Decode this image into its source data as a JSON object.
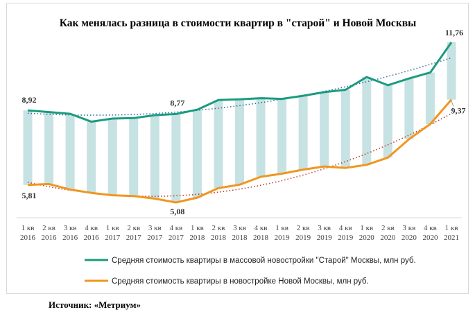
{
  "source_text": "Источник: «Метриум»",
  "chart_data": {
    "type": "line",
    "title": "Как менялась разница в стоимости квартир в \"старой\" и Новой Москвы",
    "categories": [
      "1 кв|2016",
      "2 кв|2016",
      "3 кв|2016",
      "4 кв|2016",
      "1 кв|2017",
      "2 кв|2017",
      "3 кв|2017",
      "4 кв|2017",
      "1 кв|2018",
      "2 кв|2018",
      "3 кв|2018",
      "4 кв|2018",
      "1 кв|2019",
      "2 кв|2019",
      "3 кв|2019",
      "4 кв|2019",
      "1 кв|2020",
      "2 кв|2020",
      "3 кв|2020",
      "4 кв|2020",
      "1 кв|2021"
    ],
    "series": [
      {
        "name": "Средняя стоимость квартиры в массовой новостройки \"Старой\" Москвы, млн руб.",
        "color": "#1a9b7f",
        "values": [
          8.92,
          8.85,
          8.78,
          8.45,
          8.58,
          8.6,
          8.72,
          8.77,
          8.95,
          9.35,
          9.38,
          9.43,
          9.4,
          9.53,
          9.68,
          9.78,
          10.31,
          9.97,
          10.25,
          10.5,
          11.76
        ]
      },
      {
        "name": "Средняя стоимость квартиры в новостройке Новой Москвы, млн руб.",
        "color": "#f0961f",
        "values": [
          5.81,
          5.85,
          5.62,
          5.48,
          5.38,
          5.35,
          5.24,
          5.08,
          5.28,
          5.68,
          5.82,
          6.15,
          6.28,
          6.45,
          6.58,
          6.52,
          6.65,
          6.95,
          7.72,
          8.35,
          9.37
        ]
      }
    ],
    "labeled_points": [
      {
        "series": 0,
        "index": 0,
        "text": "8,92"
      },
      {
        "series": 0,
        "index": 7,
        "text": "8,77"
      },
      {
        "series": 0,
        "index": 20,
        "text": "11,76"
      },
      {
        "series": 1,
        "index": 0,
        "text": "5,81"
      },
      {
        "series": 1,
        "index": 7,
        "text": "5,08"
      },
      {
        "series": 1,
        "index": 20,
        "text": "9,37"
      }
    ],
    "gap_bars_color": "#c7e2e2",
    "trendlines": "dotted polynomial, same colors as series",
    "legend_position": "bottom"
  }
}
